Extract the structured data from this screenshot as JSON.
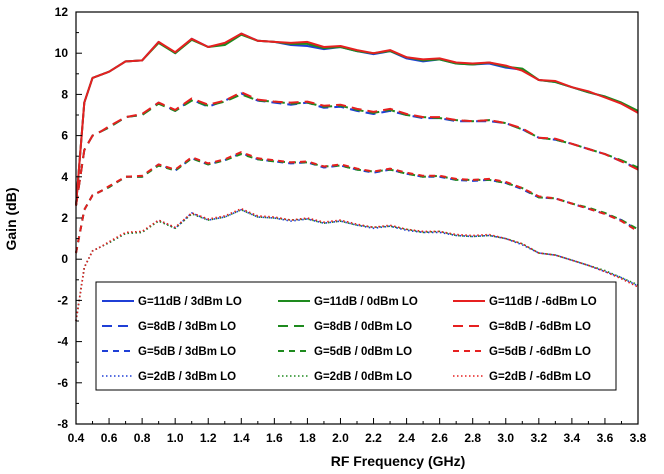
{
  "chart_data": {
    "type": "line",
    "title": "",
    "xlabel": "RF Frequency (GHz)",
    "ylabel": "Gain (dB)",
    "xlim": [
      0.4,
      3.8
    ],
    "ylim": [
      -8,
      12
    ],
    "xticks": [
      "0.4",
      "0.6",
      "0.8",
      "1.0",
      "1.2",
      "1.4",
      "1.6",
      "1.8",
      "2.0",
      "2.2",
      "2.4",
      "2.6",
      "2.8",
      "3.0",
      "3.2",
      "3.4",
      "3.6",
      "3.8"
    ],
    "yticks": [
      "12",
      "10",
      "8",
      "6",
      "4",
      "2",
      "0",
      "-2",
      "-4",
      "-6",
      "-8"
    ],
    "grid": false,
    "legend_position": "bottom-center",
    "colors": {
      "lo_3dBm": "#1f3fd6",
      "lo_0dBm": "#1e8a1e",
      "lo_m6dBm": "#e62020"
    },
    "series": [
      {
        "name": "G=11dB / 3dBm LO",
        "color": "#1f3fd6",
        "style": "solid",
        "x": [
          0.4,
          0.45,
          0.5,
          0.55,
          0.6,
          0.7,
          0.8,
          0.9,
          1.0,
          1.1,
          1.2,
          1.3,
          1.4,
          1.5,
          1.6,
          1.7,
          1.8,
          1.9,
          2.0,
          2.1,
          2.2,
          2.3,
          2.4,
          2.5,
          2.6,
          2.7,
          2.8,
          2.9,
          3.0,
          3.1,
          3.2,
          3.3,
          3.4,
          3.5,
          3.6,
          3.7,
          3.8
        ],
        "y": [
          2.6,
          7.6,
          8.8,
          8.95,
          9.1,
          9.6,
          9.65,
          10.55,
          10.0,
          10.7,
          10.3,
          10.45,
          10.95,
          10.6,
          10.55,
          10.4,
          10.35,
          10.2,
          10.3,
          10.1,
          9.95,
          10.1,
          9.75,
          9.6,
          9.7,
          9.5,
          9.45,
          9.5,
          9.3,
          9.2,
          8.7,
          8.6,
          8.35,
          8.1,
          7.9,
          7.55,
          7.15
        ]
      },
      {
        "name": "G=11dB / 0dBm LO",
        "color": "#1e8a1e",
        "style": "solid",
        "x": [
          0.4,
          0.45,
          0.5,
          0.55,
          0.6,
          0.7,
          0.8,
          0.9,
          1.0,
          1.1,
          1.2,
          1.3,
          1.4,
          1.5,
          1.6,
          1.7,
          1.8,
          1.9,
          2.0,
          2.1,
          2.2,
          2.3,
          2.4,
          2.5,
          2.6,
          2.7,
          2.8,
          2.9,
          3.0,
          3.1,
          3.2,
          3.3,
          3.4,
          3.5,
          3.6,
          3.7,
          3.8
        ],
        "y": [
          2.6,
          7.6,
          8.8,
          8.95,
          9.1,
          9.6,
          9.65,
          10.5,
          10.0,
          10.65,
          10.3,
          10.4,
          10.9,
          10.6,
          10.55,
          10.45,
          10.45,
          10.25,
          10.3,
          10.1,
          10.0,
          10.1,
          9.8,
          9.65,
          9.7,
          9.5,
          9.45,
          9.55,
          9.35,
          9.25,
          8.7,
          8.6,
          8.35,
          8.1,
          7.9,
          7.6,
          7.2
        ]
      },
      {
        "name": "G=11dB / -6dBm LO",
        "color": "#e62020",
        "style": "solid",
        "x": [
          0.4,
          0.45,
          0.5,
          0.55,
          0.6,
          0.7,
          0.8,
          0.9,
          1.0,
          1.1,
          1.2,
          1.3,
          1.4,
          1.5,
          1.6,
          1.7,
          1.8,
          1.9,
          2.0,
          2.1,
          2.2,
          2.3,
          2.4,
          2.5,
          2.6,
          2.7,
          2.8,
          2.9,
          3.0,
          3.1,
          3.2,
          3.3,
          3.4,
          3.5,
          3.6,
          3.7,
          3.8
        ],
        "y": [
          2.6,
          7.6,
          8.8,
          8.95,
          9.1,
          9.6,
          9.65,
          10.55,
          10.05,
          10.7,
          10.3,
          10.5,
          10.95,
          10.6,
          10.55,
          10.5,
          10.55,
          10.3,
          10.35,
          10.15,
          10.0,
          10.15,
          9.8,
          9.7,
          9.75,
          9.55,
          9.5,
          9.55,
          9.4,
          9.15,
          8.7,
          8.65,
          8.35,
          8.15,
          7.85,
          7.55,
          7.1
        ]
      },
      {
        "name": "G=8dB / 3dBm LO",
        "color": "#1f3fd6",
        "style": "dash",
        "x": [
          0.4,
          0.45,
          0.5,
          0.55,
          0.6,
          0.7,
          0.8,
          0.9,
          1.0,
          1.1,
          1.2,
          1.3,
          1.4,
          1.5,
          1.6,
          1.7,
          1.8,
          1.9,
          2.0,
          2.1,
          2.2,
          2.3,
          2.4,
          2.5,
          2.6,
          2.7,
          2.8,
          2.9,
          3.0,
          3.1,
          3.2,
          3.3,
          3.4,
          3.5,
          3.6,
          3.7,
          3.8
        ],
        "y": [
          2.6,
          5.3,
          6.0,
          6.2,
          6.4,
          6.9,
          7.0,
          7.6,
          7.2,
          7.75,
          7.4,
          7.7,
          8.05,
          7.7,
          7.6,
          7.5,
          7.6,
          7.35,
          7.4,
          7.2,
          7.05,
          7.2,
          7.0,
          6.85,
          6.85,
          6.7,
          6.7,
          6.7,
          6.6,
          6.3,
          5.9,
          5.8,
          5.6,
          5.35,
          5.1,
          4.75,
          4.4
        ]
      },
      {
        "name": "G=8dB / 0dBm LO",
        "color": "#1e8a1e",
        "style": "dash",
        "x": [
          0.4,
          0.45,
          0.5,
          0.55,
          0.6,
          0.7,
          0.8,
          0.9,
          1.0,
          1.1,
          1.2,
          1.3,
          1.4,
          1.5,
          1.6,
          1.7,
          1.8,
          1.9,
          2.0,
          2.1,
          2.2,
          2.3,
          2.4,
          2.5,
          2.6,
          2.7,
          2.8,
          2.9,
          3.0,
          3.1,
          3.2,
          3.3,
          3.4,
          3.5,
          3.6,
          3.7,
          3.8
        ],
        "y": [
          2.6,
          5.3,
          6.0,
          6.2,
          6.4,
          6.9,
          7.0,
          7.55,
          7.2,
          7.7,
          7.45,
          7.65,
          8.0,
          7.7,
          7.65,
          7.55,
          7.6,
          7.4,
          7.45,
          7.25,
          7.1,
          7.25,
          7.0,
          6.9,
          6.85,
          6.75,
          6.7,
          6.75,
          6.6,
          6.3,
          5.9,
          5.8,
          5.6,
          5.35,
          5.1,
          4.8,
          4.45
        ]
      },
      {
        "name": "G=8dB / -6dBm LO",
        "color": "#e62020",
        "style": "dash",
        "x": [
          0.4,
          0.45,
          0.5,
          0.55,
          0.6,
          0.7,
          0.8,
          0.9,
          1.0,
          1.1,
          1.2,
          1.3,
          1.4,
          1.5,
          1.6,
          1.7,
          1.8,
          1.9,
          2.0,
          2.1,
          2.2,
          2.3,
          2.4,
          2.5,
          2.6,
          2.7,
          2.8,
          2.9,
          3.0,
          3.1,
          3.2,
          3.3,
          3.4,
          3.5,
          3.6,
          3.7,
          3.8
        ],
        "y": [
          2.6,
          5.3,
          6.0,
          6.2,
          6.45,
          6.9,
          7.05,
          7.6,
          7.25,
          7.8,
          7.5,
          7.7,
          8.1,
          7.75,
          7.65,
          7.6,
          7.65,
          7.45,
          7.5,
          7.3,
          7.15,
          7.3,
          7.05,
          6.9,
          6.9,
          6.75,
          6.7,
          6.75,
          6.6,
          6.35,
          5.9,
          5.85,
          5.6,
          5.35,
          5.1,
          4.75,
          4.35
        ]
      },
      {
        "name": "G=5dB / 3dBm LO",
        "color": "#1f3fd6",
        "style": "shortdash",
        "x": [
          0.4,
          0.45,
          0.5,
          0.55,
          0.6,
          0.7,
          0.8,
          0.9,
          1.0,
          1.1,
          1.2,
          1.3,
          1.4,
          1.5,
          1.6,
          1.7,
          1.8,
          1.9,
          2.0,
          2.1,
          2.2,
          2.3,
          2.4,
          2.5,
          2.6,
          2.7,
          2.8,
          2.9,
          3.0,
          3.1,
          3.2,
          3.3,
          3.4,
          3.5,
          3.6,
          3.7,
          3.8
        ],
        "y": [
          0.3,
          2.4,
          3.1,
          3.3,
          3.5,
          4.0,
          4.0,
          4.6,
          4.3,
          4.9,
          4.6,
          4.8,
          5.15,
          4.85,
          4.75,
          4.65,
          4.7,
          4.45,
          4.55,
          4.35,
          4.2,
          4.35,
          4.15,
          4.0,
          4.0,
          3.85,
          3.8,
          3.85,
          3.7,
          3.4,
          3.0,
          2.95,
          2.7,
          2.45,
          2.2,
          1.9,
          1.4
        ]
      },
      {
        "name": "G=5dB / 0dBm LO",
        "color": "#1e8a1e",
        "style": "shortdash",
        "x": [
          0.4,
          0.45,
          0.5,
          0.55,
          0.6,
          0.7,
          0.8,
          0.9,
          1.0,
          1.1,
          1.2,
          1.3,
          1.4,
          1.5,
          1.6,
          1.7,
          1.8,
          1.9,
          2.0,
          2.1,
          2.2,
          2.3,
          2.4,
          2.5,
          2.6,
          2.7,
          2.8,
          2.9,
          3.0,
          3.1,
          3.2,
          3.3,
          3.4,
          3.5,
          3.6,
          3.7,
          3.8
        ],
        "y": [
          0.3,
          2.4,
          3.1,
          3.3,
          3.5,
          4.0,
          4.0,
          4.55,
          4.3,
          4.9,
          4.6,
          4.8,
          5.1,
          4.85,
          4.75,
          4.7,
          4.7,
          4.5,
          4.55,
          4.35,
          4.25,
          4.35,
          4.15,
          4.0,
          4.05,
          3.85,
          3.85,
          3.85,
          3.7,
          3.45,
          3.0,
          2.95,
          2.7,
          2.5,
          2.25,
          1.9,
          1.45
        ]
      },
      {
        "name": "G=5dB / -6dBm LO",
        "color": "#e62020",
        "style": "shortdash",
        "x": [
          0.4,
          0.45,
          0.5,
          0.55,
          0.6,
          0.7,
          0.8,
          0.9,
          1.0,
          1.1,
          1.2,
          1.3,
          1.4,
          1.5,
          1.6,
          1.7,
          1.8,
          1.9,
          2.0,
          2.1,
          2.2,
          2.3,
          2.4,
          2.5,
          2.6,
          2.7,
          2.8,
          2.9,
          3.0,
          3.1,
          3.2,
          3.3,
          3.4,
          3.5,
          3.6,
          3.7,
          3.8
        ],
        "y": [
          0.3,
          2.4,
          3.1,
          3.3,
          3.55,
          4.0,
          4.05,
          4.6,
          4.35,
          4.95,
          4.65,
          4.85,
          5.2,
          4.9,
          4.8,
          4.7,
          4.75,
          4.5,
          4.6,
          4.4,
          4.25,
          4.4,
          4.2,
          4.05,
          4.05,
          3.9,
          3.85,
          3.9,
          3.75,
          3.45,
          3.05,
          2.95,
          2.7,
          2.45,
          2.2,
          1.85,
          1.35
        ]
      },
      {
        "name": "G=2dB / 3dBm LO",
        "color": "#1f3fd6",
        "style": "dot",
        "x": [
          0.4,
          0.45,
          0.5,
          0.55,
          0.6,
          0.7,
          0.8,
          0.9,
          1.0,
          1.1,
          1.2,
          1.3,
          1.4,
          1.5,
          1.6,
          1.7,
          1.8,
          1.9,
          2.0,
          2.1,
          2.2,
          2.3,
          2.4,
          2.5,
          2.6,
          2.7,
          2.8,
          2.9,
          3.0,
          3.1,
          3.2,
          3.3,
          3.4,
          3.5,
          3.6,
          3.7,
          3.8
        ],
        "y": [
          -3.0,
          -0.4,
          0.4,
          0.6,
          0.8,
          1.25,
          1.3,
          1.9,
          1.5,
          2.25,
          1.9,
          2.05,
          2.4,
          2.05,
          2.0,
          1.85,
          1.95,
          1.75,
          1.85,
          1.65,
          1.5,
          1.6,
          1.4,
          1.3,
          1.3,
          1.15,
          1.1,
          1.15,
          1.0,
          0.7,
          0.3,
          0.2,
          -0.05,
          -0.3,
          -0.6,
          -0.9,
          -1.3
        ]
      },
      {
        "name": "G=2dB / 0dBm LO",
        "color": "#1e8a1e",
        "style": "dot",
        "x": [
          0.4,
          0.45,
          0.5,
          0.55,
          0.6,
          0.7,
          0.8,
          0.9,
          1.0,
          1.1,
          1.2,
          1.3,
          1.4,
          1.5,
          1.6,
          1.7,
          1.8,
          1.9,
          2.0,
          2.1,
          2.2,
          2.3,
          2.4,
          2.5,
          2.6,
          2.7,
          2.8,
          2.9,
          3.0,
          3.1,
          3.2,
          3.3,
          3.4,
          3.5,
          3.6,
          3.7,
          3.8
        ],
        "y": [
          -3.0,
          -0.4,
          0.4,
          0.6,
          0.8,
          1.25,
          1.3,
          1.85,
          1.5,
          2.2,
          1.9,
          2.05,
          2.4,
          2.05,
          2.0,
          1.9,
          1.95,
          1.75,
          1.85,
          1.65,
          1.55,
          1.6,
          1.45,
          1.3,
          1.35,
          1.15,
          1.1,
          1.15,
          1.0,
          0.75,
          0.3,
          0.2,
          -0.05,
          -0.3,
          -0.55,
          -0.9,
          -1.25
        ]
      },
      {
        "name": "G=2dB / -6dBm LO",
        "color": "#e62020",
        "style": "dot",
        "x": [
          0.4,
          0.45,
          0.5,
          0.55,
          0.6,
          0.7,
          0.8,
          0.9,
          1.0,
          1.1,
          1.2,
          1.3,
          1.4,
          1.5,
          1.6,
          1.7,
          1.8,
          1.9,
          2.0,
          2.1,
          2.2,
          2.3,
          2.4,
          2.5,
          2.6,
          2.7,
          2.8,
          2.9,
          3.0,
          3.1,
          3.2,
          3.3,
          3.4,
          3.5,
          3.6,
          3.7,
          3.8
        ],
        "y": [
          -3.0,
          -0.4,
          0.4,
          0.6,
          0.85,
          1.3,
          1.35,
          1.9,
          1.55,
          2.25,
          1.95,
          2.1,
          2.45,
          2.1,
          2.05,
          1.9,
          2.0,
          1.8,
          1.9,
          1.7,
          1.55,
          1.65,
          1.45,
          1.35,
          1.35,
          1.2,
          1.15,
          1.2,
          1.0,
          0.75,
          0.3,
          0.2,
          -0.05,
          -0.3,
          -0.6,
          -0.95,
          -1.35
        ]
      }
    ]
  }
}
